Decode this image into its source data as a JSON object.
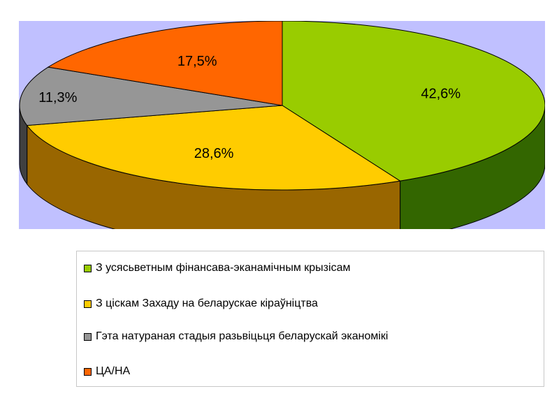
{
  "chart_data": {
    "type": "pie",
    "three_d": true,
    "title": "",
    "background_color": "#c0c0ff",
    "slices": [
      {
        "label": "З усясьветным фінансава-эканамічным крызісам",
        "value": 42.6,
        "value_label": "42,6%",
        "color": "#99cc00",
        "side_color": "#336600"
      },
      {
        "label": "З ціскам Захаду на беларускае кіраўніцтва",
        "value": 28.6,
        "value_label": "28,6%",
        "color": "#ffcc00",
        "side_color": "#996600"
      },
      {
        "label": "Гэта натураная стадыя разьвіцьця беларускай эканомікі",
        "value": 11.3,
        "value_label": "11,3%",
        "color": "#969696",
        "side_color": "#404040"
      },
      {
        "label": "ЦА/НА",
        "value": 17.5,
        "value_label": "17,5%",
        "color": "#ff6600",
        "side_color": "#993300"
      }
    ],
    "legend_position": "bottom"
  }
}
